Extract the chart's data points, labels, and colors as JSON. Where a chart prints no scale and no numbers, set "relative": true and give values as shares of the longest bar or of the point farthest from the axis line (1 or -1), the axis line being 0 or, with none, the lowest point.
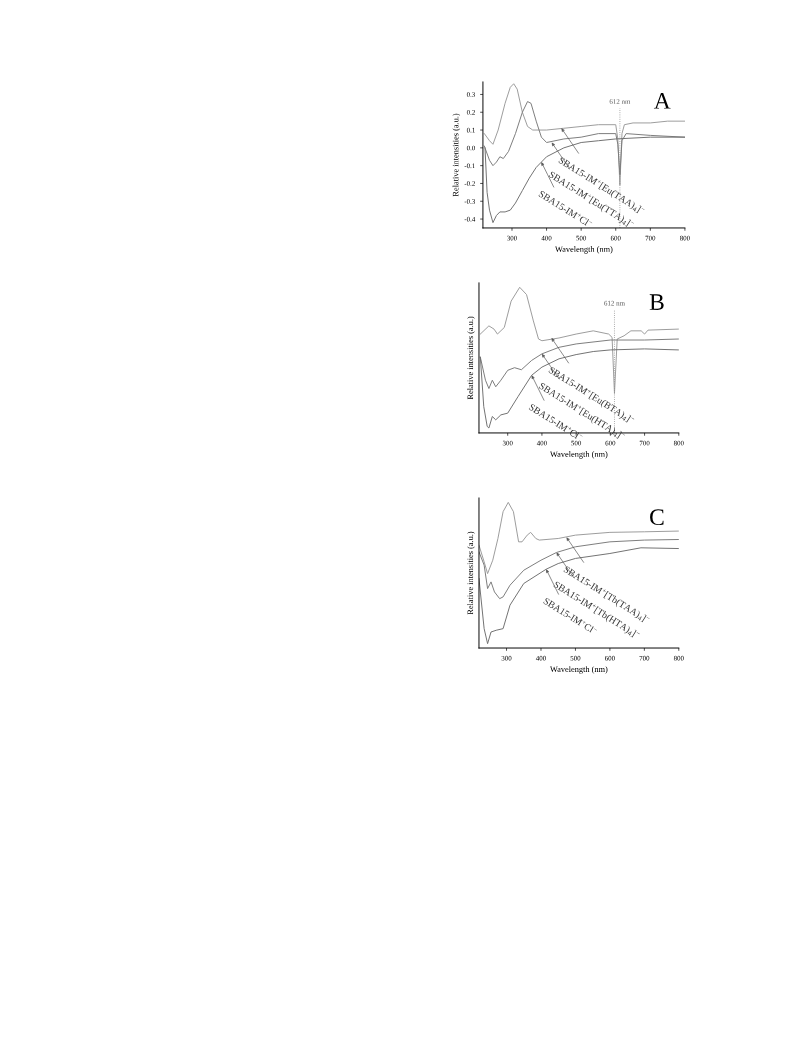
{
  "chart_data": [
    {
      "type": "line",
      "title": "A",
      "xlabel": "Wavelength (nm)",
      "ylabel": "Relative intensities (a.u.)",
      "xlim": [
        216,
        800
      ],
      "xticks": [
        300,
        400,
        500,
        600,
        700,
        800
      ],
      "ylim": [
        -0.45,
        0.37
      ],
      "yticks": [
        {
          "value": -0.4,
          "label": "-0.4"
        },
        {
          "value": -0.3,
          "label": "-0.3"
        },
        {
          "value": -0.2,
          "label": "-0.2"
        },
        {
          "value": -0.1,
          "label": "-0.1"
        },
        {
          "value": 0,
          "label": "0.0"
        },
        0.1,
        0.2,
        0.3
      ],
      "grid": false,
      "legend": false,
      "marker": "none",
      "line_style": "solid",
      "series": [
        {
          "color": "#9a9a9a",
          "x": [
            220,
            235,
            245,
            260,
            280,
            295,
            305,
            315,
            330,
            345,
            360,
            400,
            450,
            500,
            550,
            600,
            606,
            612,
            618,
            625,
            650,
            700,
            750,
            800
          ],
          "values": [
            0.08,
            0.04,
            0.02,
            0.1,
            0.25,
            0.34,
            0.36,
            0.33,
            0.2,
            0.12,
            0.1,
            0.1,
            0.11,
            0.12,
            0.13,
            0.13,
            0.05,
            -0.21,
            0.08,
            0.13,
            0.14,
            0.14,
            0.15,
            0.15
          ]
        },
        {
          "color": "#7a7a7a",
          "x": [
            220,
            235,
            245,
            255,
            265,
            275,
            290,
            310,
            330,
            345,
            355,
            370,
            385,
            400,
            450,
            500,
            550,
            600,
            606,
            612,
            618,
            630,
            700,
            800
          ],
          "values": [
            0.01,
            -0.07,
            -0.1,
            -0.08,
            -0.05,
            -0.06,
            -0.02,
            0.08,
            0.2,
            0.26,
            0.25,
            0.15,
            0.06,
            0.03,
            0.05,
            0.06,
            0.08,
            0.08,
            0.02,
            -0.15,
            0.04,
            0.08,
            0.07,
            0.06
          ]
        },
        {
          "color": "#6e6e6e",
          "x": [
            222,
            228,
            235,
            245,
            255,
            265,
            280,
            295,
            310,
            330,
            350,
            370,
            385,
            400,
            450,
            500,
            550,
            600,
            700,
            800
          ],
          "values": [
            0.0,
            -0.25,
            -0.35,
            -0.42,
            -0.38,
            -0.36,
            -0.36,
            -0.35,
            -0.31,
            -0.24,
            -0.17,
            -0.11,
            -0.08,
            -0.05,
            0.0,
            0.03,
            0.04,
            0.05,
            0.06,
            0.06
          ]
        }
      ],
      "ref_lines": [
        {
          "axis": "x",
          "value": 612,
          "label": "612 nm",
          "color": "#8a8a8a",
          "line_style": "dotted"
        }
      ],
      "annotations": [
        {
          "text": "SBA15-IM$^{+}$[Eu(TAA)$_{4}$]$^{−}$",
          "x": 443,
          "y": 0.11
        },
        {
          "text": "SBA15-IM$^{+}$[Eu(TTA)$_{4}$]$^{−}$",
          "x": 415,
          "y": 0.03
        },
        {
          "text": "SBA15-IM$^{+}$Cl$^{−}$",
          "x": 385,
          "y": -0.08
        }
      ]
    },
    {
      "type": "line",
      "title": "B",
      "xlabel": "Wavelength (nm)",
      "ylabel": "Relative intensities (a.u.)",
      "relative": true,
      "tick_labels": "x",
      "xlim": [
        216,
        800
      ],
      "xticks": [
        300,
        400,
        500,
        600,
        700,
        800
      ],
      "grid": false,
      "legend": false,
      "marker": "none",
      "line_style": "solid",
      "series": [
        {
          "color": "#9a9a9a",
          "x": [
            220,
            245,
            260,
            270,
            290,
            310,
            335,
            355,
            375,
            390,
            400,
            450,
            500,
            550,
            595,
            605,
            612,
            620,
            640,
            660,
            690,
            700,
            710,
            800
          ],
          "values": [
            0.679,
            0.735,
            0.713,
            0.679,
            0.724,
            0.905,
            1.0,
            0.95,
            0.769,
            0.645,
            0.633,
            0.652,
            0.679,
            0.701,
            0.679,
            0.656,
            0.271,
            0.645,
            0.667,
            0.701,
            0.701,
            0.679,
            0.706,
            0.713
          ]
        },
        {
          "color": "#7a7a7a",
          "x": [
            220,
            235,
            245,
            255,
            265,
            280,
            300,
            320,
            340,
            370,
            400,
            450,
            500,
            600,
            700,
            800
          ],
          "values": [
            0.52,
            0.362,
            0.305,
            0.362,
            0.317,
            0.362,
            0.43,
            0.448,
            0.434,
            0.498,
            0.543,
            0.588,
            0.611,
            0.638,
            0.638,
            0.645
          ]
        },
        {
          "color": "#6e6e6e",
          "x": [
            220,
            230,
            240,
            245,
            255,
            265,
            280,
            300,
            330,
            370,
            400,
            450,
            500,
            550,
            600,
            700,
            800
          ],
          "values": [
            0.52,
            0.181,
            0.045,
            0.034,
            0.113,
            0.09,
            0.124,
            0.136,
            0.249,
            0.396,
            0.452,
            0.509,
            0.538,
            0.559,
            0.57,
            0.577,
            0.57
          ]
        }
      ],
      "ref_lines": [
        {
          "axis": "x",
          "value": 612,
          "label": "612 nm",
          "color": "#8a8a8a",
          "line_style": "dotted"
        }
      ],
      "annotations": [
        {
          "text": "SBA15-IM$^{+}$[Eu(BTA)$_{4}$]$^{−}$",
          "x": 428,
          "y": 0.652
        },
        {
          "text": "SBA15-IM$^{+}$[Eu(HTA)$_{4}$]$^{−}$",
          "x": 400,
          "y": 0.543
        },
        {
          "text": "SBA15-IM$^{+}$Cl$^{−}$",
          "x": 370,
          "y": 0.396
        }
      ]
    },
    {
      "type": "line",
      "title": "C",
      "xlabel": "Wavelength (nm)",
      "ylabel": "Relative intensities (a.u.)",
      "relative": true,
      "tick_labels": "x",
      "xlim": [
        220,
        800
      ],
      "xticks": [
        300,
        400,
        500,
        600,
        700,
        800
      ],
      "grid": false,
      "legend": false,
      "marker": "none",
      "line_style": "solid",
      "series": [
        {
          "color": "#9a9a9a",
          "x": [
            220,
            235,
            245,
            260,
            275,
            290,
            305,
            320,
            335,
            345,
            360,
            370,
            385,
            395,
            450,
            500,
            600,
            700,
            800
          ],
          "values": [
            0.706,
            0.592,
            0.511,
            0.603,
            0.752,
            0.936,
            1.0,
            0.936,
            0.729,
            0.729,
            0.775,
            0.794,
            0.752,
            0.741,
            0.752,
            0.775,
            0.794,
            0.798,
            0.803
          ]
        },
        {
          "color": "#7a7a7a",
          "x": [
            220,
            235,
            245,
            255,
            265,
            280,
            290,
            310,
            350,
            400,
            445,
            500,
            600,
            700,
            800
          ],
          "values": [
            0.661,
            0.569,
            0.408,
            0.454,
            0.385,
            0.339,
            0.351,
            0.431,
            0.534,
            0.603,
            0.656,
            0.695,
            0.729,
            0.741,
            0.745
          ]
        },
        {
          "color": "#6e6e6e",
          "x": [
            220,
            235,
            245,
            255,
            270,
            290,
            310,
            350,
            415,
            450,
            500,
            600,
            690,
            800
          ],
          "values": [
            0.477,
            0.133,
            0.03,
            0.11,
            0.122,
            0.133,
            0.294,
            0.443,
            0.541,
            0.58,
            0.615,
            0.649,
            0.688,
            0.683
          ]
        }
      ],
      "annotations": [
        {
          "text": "SBA15-IM$^{+}$[Tb(TAA)$_{4}$]$^{−}$",
          "x": 474,
          "y": 0.76
        },
        {
          "text": "SBA15-IM$^{+}$[Tb(HTA)$_{4}$]$^{−}$",
          "x": 445,
          "y": 0.656
        },
        {
          "text": "SBA15-IM$^{+}$Cl$^{−}$",
          "x": 415,
          "y": 0.541
        }
      ]
    }
  ]
}
